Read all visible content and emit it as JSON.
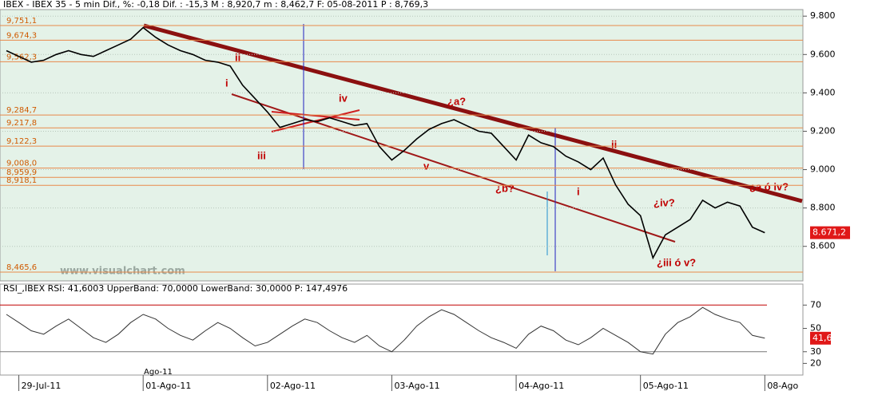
{
  "chart_data": [
    {
      "type": "line",
      "title": "IBEX - IBEX 35 -  5 min Dif., %: -0,18 Dif. : -15,3  M : 8,920,7  m : 8,462,7  F: 05-08-2011  P : 8,769,3",
      "categories": [
        null,
        "29-Jul-11",
        null,
        null,
        null,
        null,
        null,
        null,
        null,
        null,
        null,
        "01-Ago-11",
        null,
        null,
        null,
        null,
        null,
        null,
        null,
        null,
        null,
        "02-Ago-11",
        null,
        null,
        null,
        null,
        null,
        null,
        null,
        null,
        null,
        "03-Ago-11",
        null,
        null,
        null,
        null,
        null,
        null,
        null,
        null,
        null,
        "04-Ago-11",
        null,
        null,
        null,
        null,
        null,
        null,
        null,
        null,
        null,
        "05-Ago-11",
        null,
        null,
        null,
        null,
        null,
        null,
        null,
        null,
        null,
        "08-Ago",
        null,
        null,
        null
      ],
      "values": [
        9620,
        9590,
        9560,
        9570,
        9600,
        9620,
        9600,
        9590,
        9620,
        9650,
        9680,
        9740,
        9690,
        9650,
        9620,
        9600,
        9570,
        9560,
        9540,
        9440,
        9370,
        9300,
        9220,
        9240,
        9260,
        9250,
        9270,
        9250,
        9230,
        9240,
        9120,
        9050,
        9100,
        9160,
        9210,
        9240,
        9260,
        9230,
        9200,
        9190,
        9120,
        9050,
        9180,
        9140,
        9120,
        9070,
        9040,
        9000,
        9060,
        8920,
        8820,
        8760,
        8540,
        8660,
        8700,
        8740,
        8840,
        8800,
        8830,
        8810,
        8700,
        8671.2,
        null,
        null,
        null
      ],
      "color": "#000000",
      "ylim": [
        8420,
        9830
      ],
      "yticks": [
        {
          "value": 8600,
          "label": "8.600"
        },
        {
          "value": 8800,
          "label": "8.800"
        },
        {
          "value": 9000,
          "label": "9.000"
        },
        {
          "value": 9200,
          "label": "9.200"
        },
        {
          "value": 9400,
          "label": "9.400"
        },
        {
          "value": 9600,
          "label": "9.600"
        },
        {
          "value": 9800,
          "label": "9.800"
        }
      ],
      "grid": true,
      "levels": [
        {
          "value": 9751.1,
          "label": "9,751,1"
        },
        {
          "value": 9674.3,
          "label": "9,674,3"
        },
        {
          "value": 9562.3,
          "label": "9,562,3"
        },
        {
          "value": 9284.7,
          "label": "9,284,7"
        },
        {
          "value": 9217.8,
          "label": "9,217,8"
        },
        {
          "value": 9122.3,
          "label": "9,122,3"
        },
        {
          "value": 9008.0,
          "label": "9,008,0"
        },
        {
          "value": 8959.9,
          "label": "8,959,9"
        },
        {
          "value": 8918.1,
          "label": "8,918,1"
        },
        {
          "value": 8465.6,
          "label": "8,465,6"
        }
      ],
      "current": {
        "value": 8671.2,
        "label": "8.671,2"
      },
      "annotations": [
        "ii",
        "i",
        "iv",
        "iii",
        "¿a?",
        "v",
        "¿b?",
        "ii",
        "i",
        "¿iv?",
        "¿iii ó v?",
        "¿a ó iv?"
      ],
      "watermark": "www.visualchart.com",
      "extra_x_label": "Ago-11"
    },
    {
      "type": "line",
      "title": "RSI_,IBEX RSI: 41,6003 UpperBand: 70,0000 LowerBand: 30,0000 P: 147,4976",
      "values": [
        62,
        55,
        48,
        45,
        52,
        58,
        50,
        42,
        38,
        45,
        55,
        62,
        58,
        50,
        44,
        40,
        48,
        55,
        50,
        42,
        35,
        38,
        45,
        52,
        58,
        55,
        48,
        42,
        38,
        44,
        35,
        30,
        40,
        52,
        60,
        66,
        62,
        55,
        48,
        42,
        38,
        33,
        45,
        52,
        48,
        40,
        36,
        42,
        50,
        44,
        38,
        30,
        28,
        45,
        55,
        60,
        68,
        62,
        58,
        55,
        44,
        41.6,
        null,
        null,
        null
      ],
      "color": "#333333",
      "ylim": [
        10,
        88
      ],
      "yticks": [
        20,
        30,
        50,
        70
      ],
      "upper_band": 70,
      "lower_band": 30,
      "current": {
        "value": 41.6,
        "label": "41,6"
      }
    }
  ]
}
